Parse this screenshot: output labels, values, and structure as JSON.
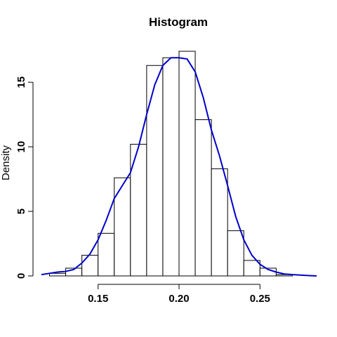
{
  "chart_data": {
    "type": "bar",
    "title": "Histogram",
    "xlabel": "",
    "ylabel": "Density",
    "xlim": [
      0.115,
      0.285
    ],
    "ylim": [
      0,
      18
    ],
    "grid": false,
    "x_ticks": [
      {
        "value": 0.15,
        "label": "0.15"
      },
      {
        "value": 0.2,
        "label": "0.20"
      },
      {
        "value": 0.25,
        "label": "0.25"
      }
    ],
    "y_ticks": [
      {
        "value": 0,
        "label": "0"
      },
      {
        "value": 5,
        "label": "5"
      },
      {
        "value": 10,
        "label": "10"
      },
      {
        "value": 15,
        "label": "15"
      }
    ],
    "bins": [
      {
        "x0": 0.12,
        "x1": 0.13,
        "density": 0.2
      },
      {
        "x0": 0.13,
        "x1": 0.14,
        "density": 0.6
      },
      {
        "x0": 0.14,
        "x1": 0.15,
        "density": 1.6
      },
      {
        "x0": 0.15,
        "x1": 0.16,
        "density": 3.3
      },
      {
        "x0": 0.16,
        "x1": 0.17,
        "density": 7.6
      },
      {
        "x0": 0.17,
        "x1": 0.18,
        "density": 10.2
      },
      {
        "x0": 0.18,
        "x1": 0.19,
        "density": 16.3
      },
      {
        "x0": 0.19,
        "x1": 0.2,
        "density": 16.9
      },
      {
        "x0": 0.2,
        "x1": 0.21,
        "density": 17.4
      },
      {
        "x0": 0.21,
        "x1": 0.22,
        "density": 12.1
      },
      {
        "x0": 0.22,
        "x1": 0.23,
        "density": 8.3
      },
      {
        "x0": 0.23,
        "x1": 0.24,
        "density": 3.5
      },
      {
        "x0": 0.24,
        "x1": 0.25,
        "density": 1.2
      },
      {
        "x0": 0.25,
        "x1": 0.26,
        "density": 0.6
      },
      {
        "x0": 0.26,
        "x1": 0.27,
        "density": 0.1
      }
    ],
    "density_curve": {
      "color": "#0000cd",
      "points": [
        [
          0.115,
          0.1
        ],
        [
          0.12,
          0.2
        ],
        [
          0.125,
          0.3
        ],
        [
          0.13,
          0.35
        ],
        [
          0.135,
          0.5
        ],
        [
          0.14,
          1.0
        ],
        [
          0.145,
          1.7
        ],
        [
          0.15,
          2.8
        ],
        [
          0.155,
          4.3
        ],
        [
          0.16,
          6.0
        ],
        [
          0.165,
          7.0
        ],
        [
          0.17,
          8.0
        ],
        [
          0.175,
          10.0
        ],
        [
          0.18,
          12.5
        ],
        [
          0.185,
          14.8
        ],
        [
          0.19,
          16.3
        ],
        [
          0.195,
          16.9
        ],
        [
          0.2,
          16.9
        ],
        [
          0.205,
          16.8
        ],
        [
          0.21,
          15.8
        ],
        [
          0.215,
          13.8
        ],
        [
          0.22,
          11.3
        ],
        [
          0.225,
          9.3
        ],
        [
          0.23,
          7.0
        ],
        [
          0.235,
          4.6
        ],
        [
          0.24,
          2.8
        ],
        [
          0.245,
          1.6
        ],
        [
          0.25,
          0.9
        ],
        [
          0.255,
          0.5
        ],
        [
          0.26,
          0.3
        ],
        [
          0.265,
          0.15
        ],
        [
          0.27,
          0.1
        ],
        [
          0.28,
          0.03
        ],
        [
          0.285,
          0.0
        ]
      ]
    }
  }
}
